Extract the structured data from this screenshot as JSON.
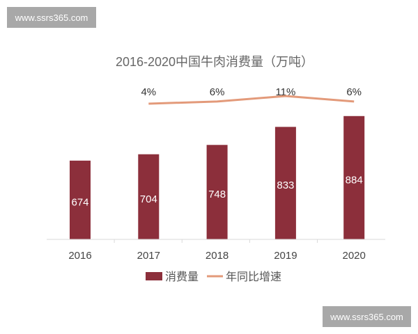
{
  "watermarks": [
    "www.ssrs365.com",
    "www.ssrs365.com"
  ],
  "chart_data": {
    "type": "bar",
    "title": "2016-2020中国牛肉消费量（万吨）",
    "categories": [
      "2016",
      "2017",
      "2018",
      "2019",
      "2020"
    ],
    "series": [
      {
        "name": "消费量",
        "type": "bar",
        "values": [
          674,
          704,
          748,
          833,
          884
        ],
        "labels": [
          "674",
          "704",
          "748",
          "833",
          "884"
        ],
        "color": "#8c2f3b"
      },
      {
        "name": "年同比增速",
        "type": "line",
        "values": [
          null,
          4,
          6,
          11,
          6
        ],
        "labels": [
          "",
          "4%",
          "6%",
          "11%",
          "6%"
        ],
        "unit": "%",
        "color": "#e39a7a"
      }
    ],
    "legend": "bottom",
    "grid": false
  }
}
